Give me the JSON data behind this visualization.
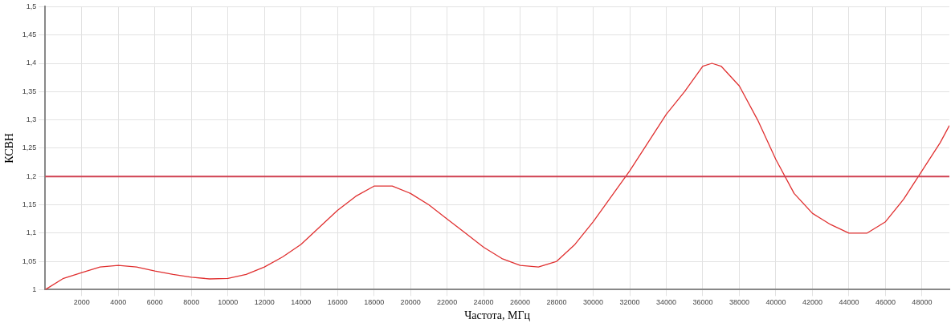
{
  "chart_data": {
    "type": "line",
    "xlabel": "Частота, МГц",
    "ylabel": "КСВН",
    "x": [
      0,
      1000,
      2000,
      3000,
      4000,
      5000,
      6000,
      7000,
      8000,
      9000,
      10000,
      11000,
      12000,
      13000,
      14000,
      15000,
      16000,
      17000,
      18000,
      19000,
      20000,
      21000,
      22000,
      23000,
      24000,
      25000,
      26000,
      27000,
      28000,
      29000,
      30000,
      31000,
      32000,
      33000,
      34000,
      35000,
      36000,
      36500,
      37000,
      38000,
      39000,
      40000,
      41000,
      42000,
      43000,
      44000,
      45000,
      46000,
      47000,
      48000,
      49000,
      49500
    ],
    "series": [
      {
        "color": "#e03030",
        "values": [
          1.0,
          1.02,
          1.03,
          1.04,
          1.043,
          1.04,
          1.033,
          1.027,
          1.022,
          1.019,
          1.02,
          1.027,
          1.04,
          1.058,
          1.08,
          1.11,
          1.14,
          1.165,
          1.183,
          1.183,
          1.17,
          1.15,
          1.125,
          1.1,
          1.075,
          1.055,
          1.043,
          1.04,
          1.05,
          1.08,
          1.12,
          1.165,
          1.21,
          1.26,
          1.31,
          1.35,
          1.395,
          1.4,
          1.395,
          1.36,
          1.3,
          1.23,
          1.17,
          1.135,
          1.115,
          1.1,
          1.1,
          1.12,
          1.16,
          1.21,
          1.26,
          1.29
        ]
      }
    ],
    "xlim": [
      0,
      49500
    ],
    "xticks": [
      2000,
      4000,
      6000,
      8000,
      10000,
      12000,
      14000,
      16000,
      18000,
      20000,
      22000,
      24000,
      26000,
      28000,
      30000,
      32000,
      34000,
      36000,
      38000,
      40000,
      42000,
      44000,
      46000,
      48000
    ],
    "ylim": [
      1,
      1.5
    ],
    "yticks": [
      1,
      {
        "value": 1.05,
        "label": "1,05"
      },
      {
        "value": 1.1,
        "label": "1,1"
      },
      {
        "value": 1.15,
        "label": "1,15"
      },
      {
        "value": 1.2,
        "label": "1,2"
      },
      {
        "value": 1.25,
        "label": "1,25"
      },
      {
        "value": 1.3,
        "label": "1,3"
      },
      {
        "value": 1.35,
        "label": "1,35"
      },
      {
        "value": 1.4,
        "label": "1,4"
      },
      {
        "value": 1.45,
        "label": "1,45"
      },
      {
        "value": 1.5,
        "label": "1,5"
      }
    ],
    "ref_lines": [
      {
        "axis": "y",
        "value": 1.2,
        "color": "#d04050"
      }
    ],
    "grid": true,
    "legend": false,
    "marker": "none",
    "line_style": "solid"
  }
}
